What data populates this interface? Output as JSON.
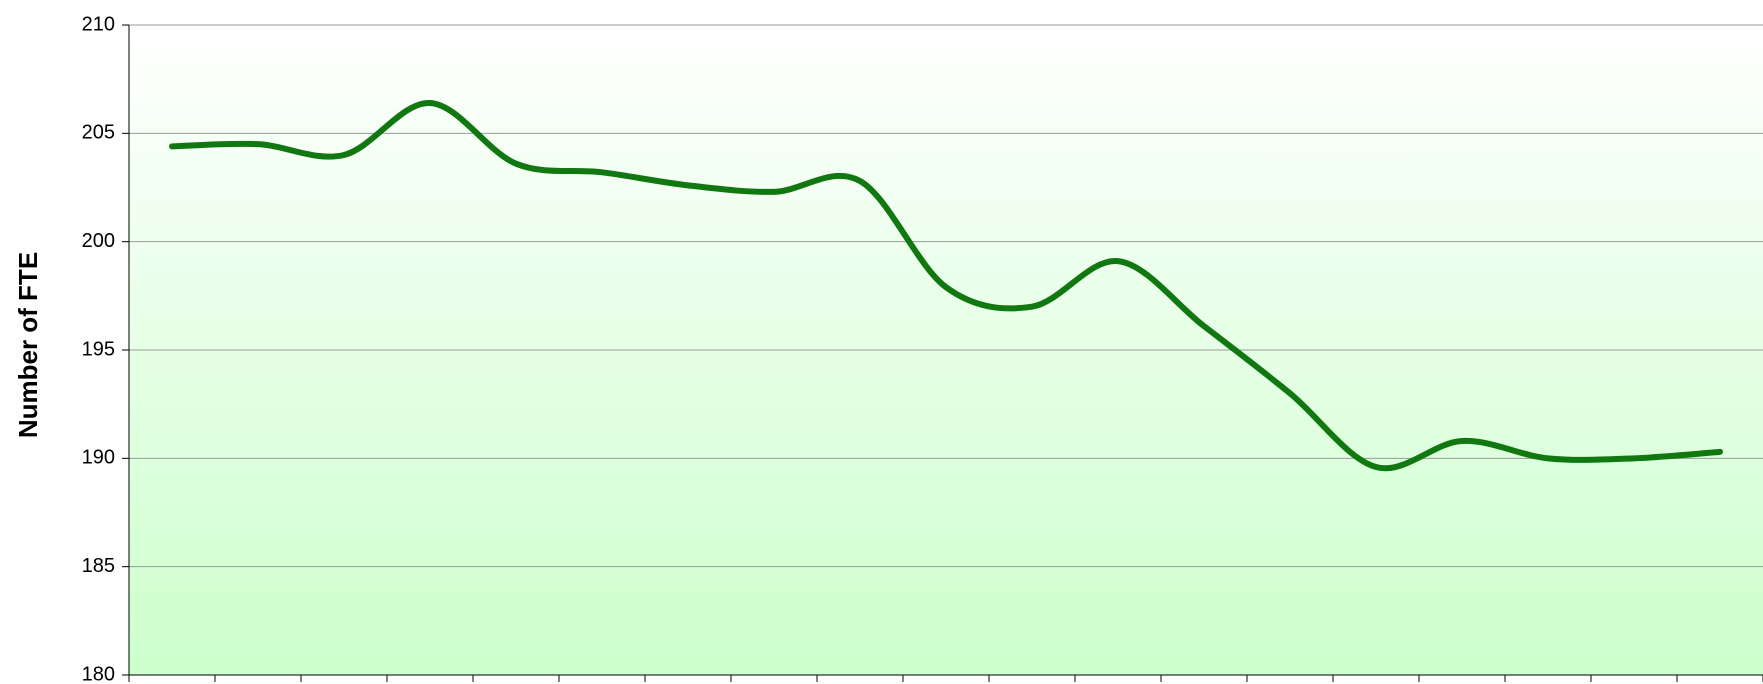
{
  "chart_data": {
    "type": "line",
    "y_label": "Number of FTE",
    "categories": [
      null,
      null,
      null,
      null,
      null,
      null,
      null,
      null,
      null,
      null,
      null,
      null,
      null,
      null,
      null,
      null,
      null,
      null,
      null
    ],
    "series": [
      {
        "name": null,
        "color": "#117711",
        "values": [
          204.4,
          204.5,
          204.0,
          206.4,
          203.6,
          203.2,
          202.6,
          202.3,
          202.8,
          197.9,
          197.0,
          199.1,
          196.1,
          193.0,
          189.6,
          190.8,
          190.0,
          190.0,
          190.3
        ]
      }
    ],
    "ylim": [
      180,
      210
    ],
    "yticks": [
      180,
      185,
      190,
      195,
      200,
      205,
      210
    ],
    "grid": true,
    "smooth": true
  }
}
